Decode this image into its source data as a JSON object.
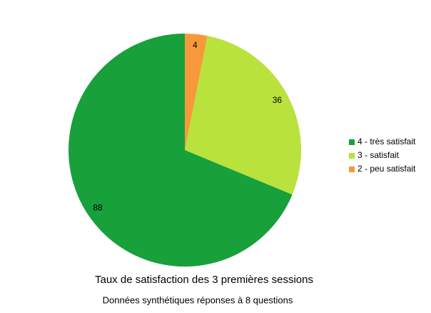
{
  "chart_data": {
    "type": "pie",
    "title": "Taux de satisfaction des 3 premières sessions",
    "subtitle": "Données synthétiques réponses à 8 questions",
    "categories": [
      "4 - très satisfait",
      "3 - satisfait",
      "2 - peu satisfait"
    ],
    "values": [
      88,
      36,
      4
    ],
    "colors": [
      "#18a03a",
      "#b9e23c",
      "#f7993a"
    ],
    "legend": "right"
  }
}
